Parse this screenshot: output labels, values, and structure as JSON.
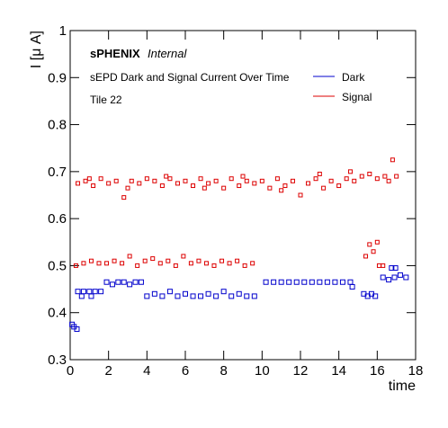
{
  "chart_data": {
    "type": "scatter",
    "brand": "sPHENIX",
    "brand_note": "Internal",
    "title": "sEPD Dark and Signal Current Over Time",
    "subtitle": "Tile 22",
    "x_label": "time",
    "y_label": "I [μ A]",
    "xlim": [
      0,
      18
    ],
    "ylim": [
      0.3,
      1
    ],
    "xticks": [
      0,
      2,
      4,
      6,
      8,
      10,
      12,
      14,
      16,
      18
    ],
    "yticks": [
      0.3,
      0.4,
      0.5,
      0.6,
      0.7,
      0.8,
      0.9,
      1
    ],
    "legend": "top-right",
    "series": [
      {
        "name": "Dark",
        "color": "#0000cc",
        "x": [
          0.1,
          0.2,
          0.35,
          0.4,
          0.7,
          1.0,
          1.3,
          1.6,
          0.6,
          1.1,
          1.9,
          2.2,
          2.5,
          2.8,
          3.1,
          3.4,
          3.7,
          4.0,
          4.4,
          4.8,
          5.2,
          5.6,
          6.0,
          6.4,
          6.8,
          7.2,
          7.6,
          8.0,
          8.4,
          8.8,
          9.2,
          9.6,
          10.2,
          10.6,
          11.0,
          11.4,
          11.8,
          12.2,
          12.6,
          13.0,
          13.4,
          13.8,
          14.2,
          14.6,
          14.7,
          15.3,
          15.5,
          15.7,
          15.9,
          16.3,
          16.6,
          16.9,
          17.2,
          17.5,
          16.75,
          16.95
        ],
        "values": [
          0.375,
          0.37,
          0.365,
          0.445,
          0.445,
          0.445,
          0.445,
          0.445,
          0.435,
          0.435,
          0.465,
          0.46,
          0.465,
          0.465,
          0.46,
          0.465,
          0.465,
          0.435,
          0.44,
          0.435,
          0.445,
          0.435,
          0.44,
          0.435,
          0.435,
          0.44,
          0.435,
          0.445,
          0.435,
          0.44,
          0.435,
          0.435,
          0.465,
          0.465,
          0.465,
          0.465,
          0.465,
          0.465,
          0.465,
          0.465,
          0.465,
          0.465,
          0.465,
          0.465,
          0.455,
          0.44,
          0.435,
          0.44,
          0.435,
          0.475,
          0.47,
          0.475,
          0.48,
          0.475,
          0.495,
          0.495
        ]
      },
      {
        "name": "Signal",
        "color": "#dd0000",
        "x": [
          0.4,
          0.8,
          1.2,
          1.6,
          2.0,
          2.4,
          2.8,
          3.2,
          3.6,
          4.0,
          4.4,
          4.8,
          5.2,
          5.6,
          6.0,
          6.4,
          6.8,
          7.2,
          7.6,
          8.0,
          8.4,
          8.8,
          9.2,
          9.6,
          10.0,
          10.4,
          10.8,
          11.2,
          11.6,
          12.0,
          12.4,
          12.8,
          13.2,
          13.6,
          14.0,
          14.4,
          14.8,
          15.2,
          15.6,
          16.0,
          16.4,
          16.8,
          1.0,
          3.0,
          5.0,
          7.0,
          9.0,
          11.0,
          13.0,
          14.6,
          16.6,
          17.0,
          0.3,
          0.7,
          1.1,
          1.5,
          1.9,
          2.3,
          2.7,
          3.1,
          3.5,
          3.9,
          4.3,
          4.7,
          5.1,
          5.5,
          5.9,
          6.3,
          6.7,
          7.1,
          7.5,
          7.9,
          8.3,
          8.7,
          9.1,
          9.5,
          15.4,
          15.6,
          15.8,
          16.0,
          16.1,
          16.3
        ],
        "values": [
          0.675,
          0.68,
          0.67,
          0.685,
          0.675,
          0.68,
          0.645,
          0.68,
          0.675,
          0.685,
          0.68,
          0.67,
          0.685,
          0.675,
          0.68,
          0.67,
          0.685,
          0.675,
          0.68,
          0.665,
          0.685,
          0.67,
          0.68,
          0.675,
          0.68,
          0.665,
          0.685,
          0.67,
          0.68,
          0.65,
          0.675,
          0.685,
          0.665,
          0.68,
          0.67,
          0.685,
          0.68,
          0.69,
          0.695,
          0.685,
          0.69,
          0.725,
          0.685,
          0.665,
          0.69,
          0.665,
          0.69,
          0.66,
          0.695,
          0.7,
          0.68,
          0.69,
          0.5,
          0.505,
          0.51,
          0.505,
          0.505,
          0.51,
          0.505,
          0.52,
          0.5,
          0.51,
          0.515,
          0.505,
          0.51,
          0.5,
          0.52,
          0.505,
          0.51,
          0.505,
          0.5,
          0.51,
          0.505,
          0.51,
          0.5,
          0.505,
          0.52,
          0.545,
          0.53,
          0.55,
          0.5,
          0.5
        ]
      }
    ]
  }
}
